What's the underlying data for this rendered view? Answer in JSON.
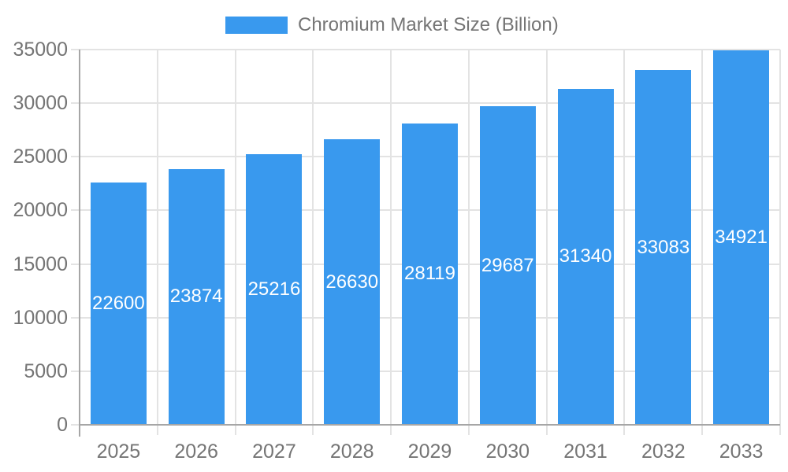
{
  "chart_data": {
    "type": "bar",
    "title": "Chromium Market Size (Billion)",
    "legend_entries": [
      "Chromium Market Size (Billion)"
    ],
    "legend_position": "top",
    "categories": [
      "2025",
      "2026",
      "2027",
      "2028",
      "2029",
      "2030",
      "2031",
      "2032",
      "2033"
    ],
    "values": [
      22600,
      23874,
      25216,
      26630,
      28119,
      29687,
      31340,
      33083,
      34921
    ],
    "xlabel": "",
    "ylabel": "",
    "ylim": [
      0,
      35000
    ],
    "ytick_step": 5000,
    "ytick_labels": [
      "0",
      "5000",
      "10000",
      "15000",
      "20000",
      "25000",
      "30000",
      "35000"
    ],
    "grid": true,
    "value_labels_position": "inside-center",
    "colors": {
      "bar": "#3999EE",
      "value_label": "#FFFFFF",
      "axis_line": "#A6A6A6",
      "grid_line": "#E3E3E3",
      "text": "#757575",
      "background": "#FFFFFF"
    }
  }
}
